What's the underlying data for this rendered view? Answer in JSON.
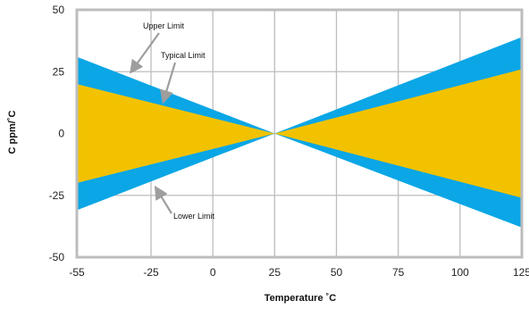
{
  "chart_data": {
    "type": "area",
    "xlabel": "Temperature ˚C",
    "ylabel": "C ppm/˚C",
    "xlim": [
      -55,
      125
    ],
    "ylim": [
      -50,
      50
    ],
    "x_ticks": [
      "-55",
      "-25",
      "0",
      "25",
      "50",
      "75",
      "100",
      "125"
    ],
    "y_ticks": [
      "50",
      "25",
      "0",
      "-25",
      "-50"
    ],
    "grid": true,
    "bands": [
      {
        "label": "Upper Limit / Lower Limit",
        "color": "#0aa6e6",
        "upper": [
          [
            -55,
            31
          ],
          [
            25,
            0
          ],
          [
            125,
            39
          ]
        ],
        "lower": [
          [
            -55,
            -31
          ],
          [
            25,
            0
          ],
          [
            125,
            -38
          ]
        ]
      },
      {
        "label": "Typical Limit",
        "color": "#f2c200",
        "upper": [
          [
            -55,
            20
          ],
          [
            25,
            0
          ],
          [
            125,
            26
          ]
        ],
        "lower": [
          [
            -55,
            -20
          ],
          [
            25,
            0
          ],
          [
            125,
            -26
          ]
        ]
      }
    ],
    "annotations": [
      {
        "text": "Upper Limit",
        "point": [
          -33,
          25
        ]
      },
      {
        "text": "Typical Limit",
        "point": [
          -20,
          13
        ]
      },
      {
        "text": "Lower Limit",
        "point": [
          -23,
          -22
        ]
      }
    ],
    "colors": {
      "frame": "#bdbdbd",
      "grid": "#bdbdbd",
      "arrow": "#9e9e9e"
    }
  }
}
